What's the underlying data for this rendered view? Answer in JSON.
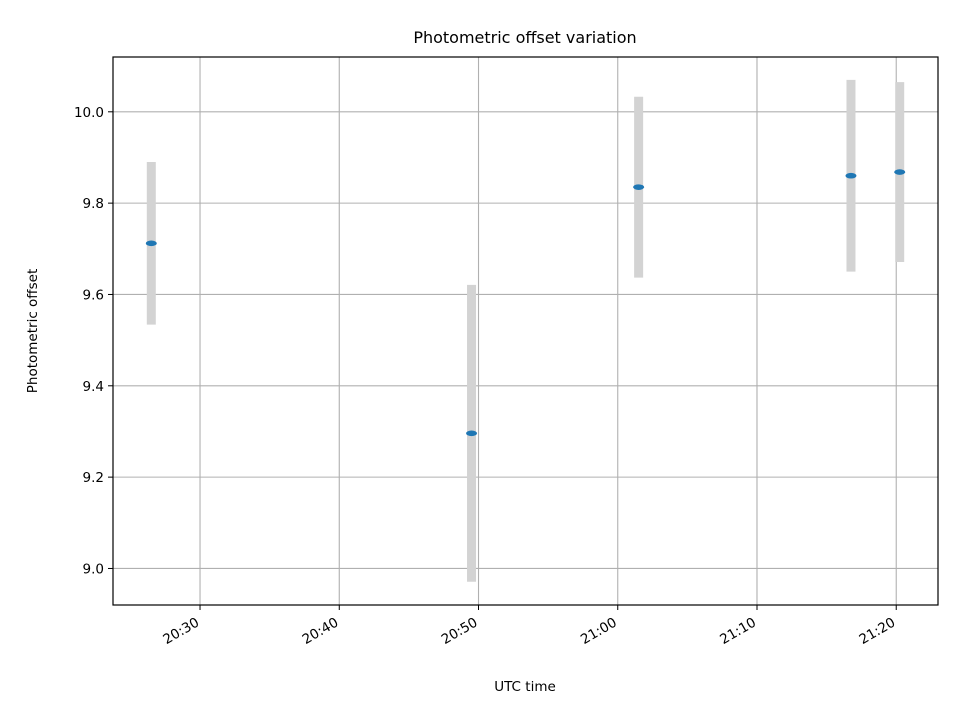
{
  "chart_data": {
    "type": "scatter",
    "title": "Photometric offset variation",
    "xlabel": "UTC time",
    "ylabel": "Photometric offset",
    "x_ticks": [
      "20:30",
      "20:40",
      "20:50",
      "21:00",
      "21:10",
      "21:20"
    ],
    "xlim": [
      "20:23:45",
      "21:23:00"
    ],
    "ylim": [
      8.92,
      10.12
    ],
    "y_ticks": [
      9.0,
      9.2,
      9.4,
      9.6,
      9.8,
      10.0
    ],
    "grid": true,
    "series": [
      {
        "marker_color": "#1f77b4",
        "errorbar_color": "#d3d3d3",
        "points": [
          {
            "x": "20:26:30",
            "y": 9.712,
            "err": 0.178
          },
          {
            "x": "20:49:30",
            "y": 9.296,
            "err": 0.325
          },
          {
            "x": "21:01:30",
            "y": 9.835,
            "err": 0.198
          },
          {
            "x": "21:16:45",
            "y": 9.86,
            "err": 0.21
          },
          {
            "x": "21:20:15",
            "y": 9.868,
            "err": 0.197
          }
        ]
      }
    ]
  }
}
